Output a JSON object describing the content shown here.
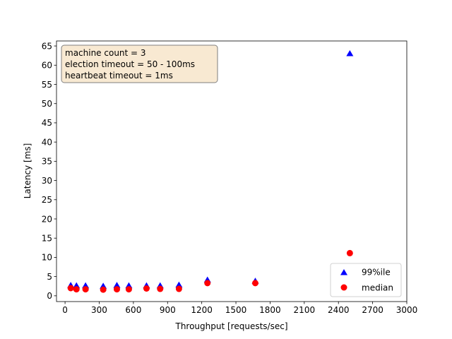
{
  "chart_data": {
    "type": "scatter",
    "xlabel": "Throughput [requests/sec]",
    "ylabel": "Latency [ms]",
    "xlim": [
      -75,
      3000
    ],
    "ylim": [
      -1.5,
      66.3
    ],
    "xticks": [
      0,
      300,
      600,
      900,
      1200,
      1500,
      1800,
      2100,
      2400,
      2700,
      3000
    ],
    "yticks": [
      0,
      5,
      10,
      15,
      20,
      25,
      30,
      35,
      40,
      45,
      50,
      55,
      60,
      65
    ],
    "grid": false,
    "legend_position": "lower-right",
    "annotation": {
      "lines": [
        "machine count = 3",
        "election timeout = 50 - 100ms",
        "heartbeat timeout = 1ms"
      ]
    },
    "series": [
      {
        "name": "99%ile",
        "marker": "triangle",
        "color": "#0000ff",
        "points": [
          {
            "x": 50,
            "y": 2.7
          },
          {
            "x": 100,
            "y": 2.6
          },
          {
            "x": 180,
            "y": 2.6
          },
          {
            "x": 335,
            "y": 2.5
          },
          {
            "x": 455,
            "y": 2.7
          },
          {
            "x": 560,
            "y": 2.6
          },
          {
            "x": 715,
            "y": 2.6
          },
          {
            "x": 835,
            "y": 2.6
          },
          {
            "x": 1000,
            "y": 2.8
          },
          {
            "x": 1250,
            "y": 4.1
          },
          {
            "x": 1670,
            "y": 3.8
          },
          {
            "x": 2500,
            "y": 63.0
          }
        ]
      },
      {
        "name": "median",
        "marker": "circle",
        "color": "#ff0000",
        "points": [
          {
            "x": 50,
            "y": 2.0
          },
          {
            "x": 100,
            "y": 1.7
          },
          {
            "x": 180,
            "y": 1.7
          },
          {
            "x": 335,
            "y": 1.6
          },
          {
            "x": 455,
            "y": 1.7
          },
          {
            "x": 560,
            "y": 1.7
          },
          {
            "x": 715,
            "y": 1.9
          },
          {
            "x": 835,
            "y": 1.8
          },
          {
            "x": 1000,
            "y": 1.8
          },
          {
            "x": 1250,
            "y": 3.3
          },
          {
            "x": 1670,
            "y": 3.3
          },
          {
            "x": 2500,
            "y": 11.1
          }
        ]
      }
    ]
  }
}
